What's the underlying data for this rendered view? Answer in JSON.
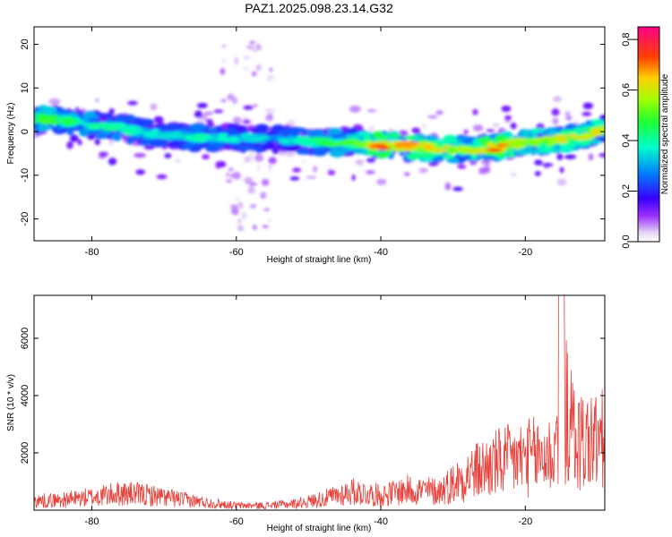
{
  "title": "PAZ1.2025.098.23.14.G32",
  "chart_data": [
    {
      "type": "heatmap",
      "title": "PAZ1.2025.098.23.14.G32",
      "xlabel": "Height of straight line (km)",
      "ylabel": "Frequency (Hz)",
      "xlim": [
        -88,
        -9
      ],
      "ylim": [
        -25,
        24
      ],
      "x_ticks": [
        -80,
        -60,
        -40,
        -20
      ],
      "y_ticks": [
        -20,
        -10,
        0,
        10,
        20
      ],
      "colorbar": {
        "label": "Normalized spectral amplitude",
        "range": [
          0.0,
          0.85
        ],
        "ticks": [
          "0.0",
          "0.2",
          "0.4",
          "0.6",
          "0.8"
        ],
        "colormap": "rainbow"
      },
      "ridge": {
        "description": "",
        "points": [
          {
            "x": -87,
            "f": 3.0,
            "amp": 0.5
          },
          {
            "x": -84,
            "f": 2.5,
            "amp": 0.45
          },
          {
            "x": -80,
            "f": 1.5,
            "amp": 0.45
          },
          {
            "x": -76,
            "f": 1.0,
            "amp": 0.4
          },
          {
            "x": -72,
            "f": -0.5,
            "amp": 0.35
          },
          {
            "x": -68,
            "f": -1.0,
            "amp": 0.35
          },
          {
            "x": -64,
            "f": -1.5,
            "amp": 0.4
          },
          {
            "x": -60,
            "f": -1.5,
            "amp": 0.35
          },
          {
            "x": -56,
            "f": -1.5,
            "amp": 0.35
          },
          {
            "x": -52,
            "f": -2.0,
            "amp": 0.35
          },
          {
            "x": -48,
            "f": -2.5,
            "amp": 0.45
          },
          {
            "x": -44,
            "f": -2.5,
            "amp": 0.5
          },
          {
            "x": -40,
            "f": -3.0,
            "amp": 0.7
          },
          {
            "x": -36,
            "f": -3.5,
            "amp": 0.7
          },
          {
            "x": -32,
            "f": -4.0,
            "amp": 0.6
          },
          {
            "x": -28,
            "f": -4.0,
            "amp": 0.55
          },
          {
            "x": -24,
            "f": -3.5,
            "amp": 0.75
          },
          {
            "x": -20,
            "f": -2.5,
            "amp": 0.5
          },
          {
            "x": -16,
            "f": -2.0,
            "amp": 0.6
          },
          {
            "x": -12,
            "f": -1.0,
            "amp": 0.6
          },
          {
            "x": -9,
            "f": 0.5,
            "amp": 0.6
          }
        ]
      }
    },
    {
      "type": "line",
      "xlabel": "Height of straight line (km)",
      "ylabel": "SNR (10 * v/v)",
      "xlim": [
        -88,
        -9
      ],
      "ylim": [
        0,
        7500
      ],
      "x_ticks": [
        -80,
        -60,
        -40,
        -20
      ],
      "y_ticks": [
        2000,
        4000,
        6000
      ],
      "color": "#e8403a",
      "envelope": {
        "x": [
          -88,
          -84,
          -80,
          -76,
          -72,
          -68,
          -64,
          -60,
          -56,
          -52,
          -48,
          -44,
          -40,
          -36,
          -32,
          -28,
          -24,
          -20,
          -16,
          -15,
          -13,
          -9
        ],
        "y": [
          500,
          550,
          700,
          900,
          800,
          600,
          400,
          250,
          250,
          350,
          600,
          1000,
          800,
          1100,
          1000,
          1900,
          2500,
          2800,
          3000,
          6000,
          3700,
          3700
        ]
      }
    }
  ]
}
